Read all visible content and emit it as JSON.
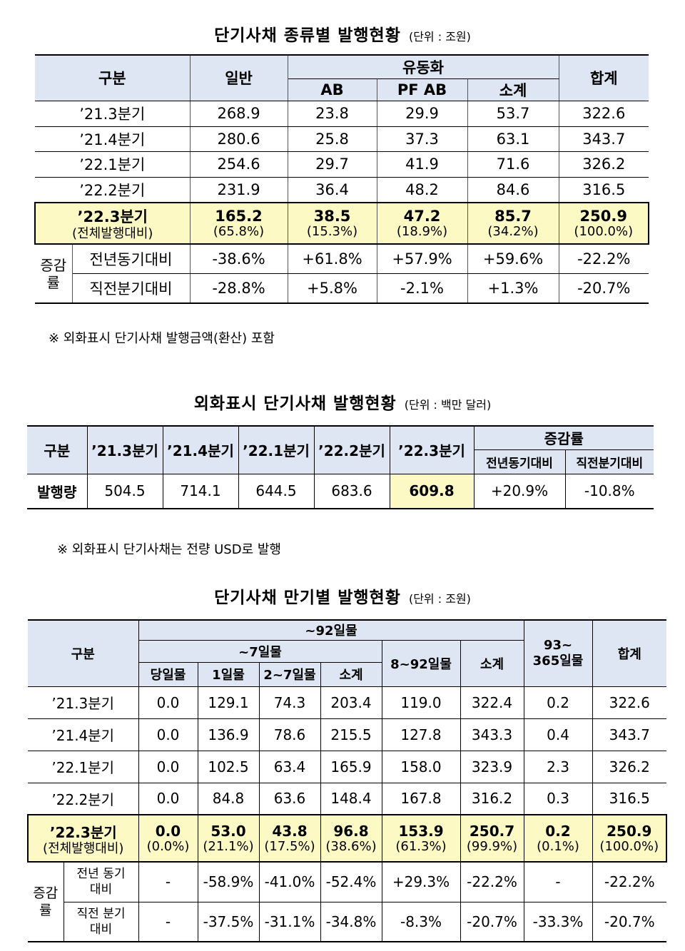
{
  "section1": {
    "title": "단기사채 종류별 발행현황",
    "unit": "(단위 : 조원)",
    "headers": {
      "category": "구분",
      "general": "일반",
      "liquid": "유동화",
      "ab": "AB",
      "pfab": "PF AB",
      "subtotal": "소계",
      "total": "합계"
    },
    "rows": [
      {
        "label": "’21.3분기",
        "general": "268.9",
        "ab": "23.8",
        "pfab": "29.9",
        "subtotal": "53.7",
        "total": "322.6"
      },
      {
        "label": "’21.4분기",
        "general": "280.6",
        "ab": "25.8",
        "pfab": "37.3",
        "subtotal": "63.1",
        "total": "343.7"
      },
      {
        "label": "’22.1분기",
        "general": "254.6",
        "ab": "29.7",
        "pfab": "41.9",
        "subtotal": "71.6",
        "total": "326.2"
      },
      {
        "label": "’22.2분기",
        "general": "231.9",
        "ab": "36.4",
        "pfab": "48.2",
        "subtotal": "84.6",
        "total": "316.5"
      }
    ],
    "highlight": {
      "label": "’22.3분기",
      "label_sub": "(전체발행대비)",
      "general": "165.2",
      "general_sub": "(65.8%)",
      "ab": "38.5",
      "ab_sub": "(15.3%)",
      "pfab": "47.2",
      "pfab_sub": "(18.9%)",
      "subtotal": "85.7",
      "subtotal_sub": "(34.2%)",
      "total": "250.9",
      "total_sub": "(100.0%)"
    },
    "change_label": "증감률",
    "yoy": {
      "label": "전년동기대비",
      "general": "-38.6%",
      "ab": "+61.8%",
      "pfab": "+57.9%",
      "subtotal": "+59.6%",
      "total": "-22.2%"
    },
    "qoq": {
      "label": "직전분기대비",
      "general": "-28.8%",
      "ab": "+5.8%",
      "pfab": "-2.1%",
      "subtotal": "+1.3%",
      "total": "-20.7%"
    },
    "note": "※ 외화표시 단기사채 발행금액(환산) 포함"
  },
  "section2": {
    "title": "외화표시 단기사채 발행현황",
    "unit": "(단위 : 백만 달러)",
    "headers": {
      "category": "구분",
      "q1": "’21.3분기",
      "q2": "’21.4분기",
      "q3": "’22.1분기",
      "q4": "’22.2분기",
      "q5": "’22.3분기",
      "change": "증감률",
      "yoy": "전년동기대비",
      "qoq": "직전분기대비"
    },
    "row": {
      "label": "발행량",
      "q1": "504.5",
      "q2": "714.1",
      "q3": "644.5",
      "q4": "683.6",
      "q5": "609.8",
      "yoy": "+20.9%",
      "qoq": "-10.8%"
    },
    "note": "※ 외화표시 단기사채는 전량 USD로 발행"
  },
  "section3": {
    "title": "단기사채 만기별 발행현황",
    "unit": "(단위 : 조원)",
    "headers": {
      "category": "구분",
      "upto92": "~92일물",
      "upto7": "~7일물",
      "sameday": "당일물",
      "oneday": "1일물",
      "d2to7": "2~7일물",
      "sub7": "소계",
      "d8to92": "8~92일물",
      "sub92": "소계",
      "d93to365_a": "93~",
      "d93to365_b": "365일물",
      "total": "합계"
    },
    "rows": [
      {
        "label": "’21.3분기",
        "sameday": "0.0",
        "oneday": "129.1",
        "d2to7": "74.3",
        "sub7": "203.4",
        "d8to92": "119.0",
        "sub92": "322.4",
        "d93": "0.2",
        "total": "322.6"
      },
      {
        "label": "’21.4분기",
        "sameday": "0.0",
        "oneday": "136.9",
        "d2to7": "78.6",
        "sub7": "215.5",
        "d8to92": "127.8",
        "sub92": "343.3",
        "d93": "0.4",
        "total": "343.7"
      },
      {
        "label": "’22.1분기",
        "sameday": "0.0",
        "oneday": "102.5",
        "d2to7": "63.4",
        "sub7": "165.9",
        "d8to92": "158.0",
        "sub92": "323.9",
        "d93": "2.3",
        "total": "326.2"
      },
      {
        "label": "’22.2분기",
        "sameday": "0.0",
        "oneday": "84.8",
        "d2to7": "63.6",
        "sub7": "148.4",
        "d8to92": "167.8",
        "sub92": "316.2",
        "d93": "0.3",
        "total": "316.5"
      }
    ],
    "highlight": {
      "label": "’22.3분기",
      "label_sub": "(전체발행대비)",
      "sameday": "0.0",
      "sameday_sub": "(0.0%)",
      "oneday": "53.0",
      "oneday_sub": "(21.1%)",
      "d2to7": "43.8",
      "d2to7_sub": "(17.5%)",
      "sub7": "96.8",
      "sub7_sub": "(38.6%)",
      "d8to92": "153.9",
      "d8to92_sub": "(61.3%)",
      "sub92": "250.7",
      "sub92_sub": "(99.9%)",
      "d93": "0.2",
      "d93_sub": "(0.1%)",
      "total": "250.9",
      "total_sub": "(100.0%)"
    },
    "change_label": "증감률",
    "yoy": {
      "label_a": "전년 동기",
      "label_b": "대비",
      "sameday": "-",
      "oneday": "-58.9%",
      "d2to7": "-41.0%",
      "sub7": "-52.4%",
      "d8to92": "+29.3%",
      "sub92": "-22.2%",
      "d93": "-",
      "total": "-22.2%"
    },
    "qoq": {
      "label_a": "직전 분기",
      "label_b": "대비",
      "sameday": "-",
      "oneday": "-37.5%",
      "d2to7": "-31.1%",
      "sub7": "-34.8%",
      "d8to92": "-8.3%",
      "sub92": "-20.7%",
      "d93": "-33.3%",
      "total": "-20.7%"
    }
  }
}
